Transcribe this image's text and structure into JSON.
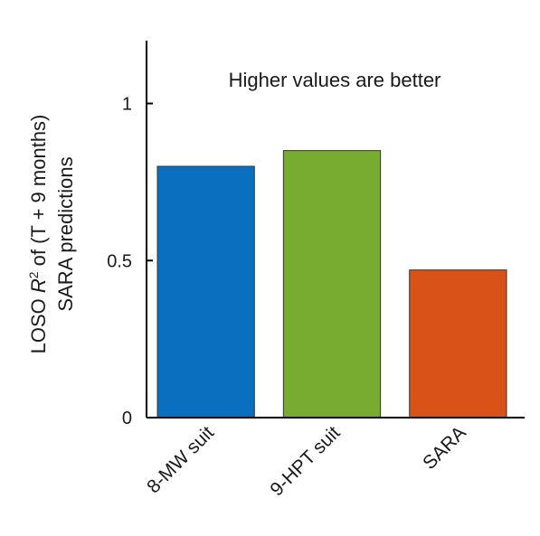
{
  "chart_data": {
    "type": "bar",
    "categories": [
      "8-MW suit",
      "9-HPT suit",
      "SARA"
    ],
    "values": [
      0.8,
      0.85,
      0.47
    ],
    "colors": [
      "#0a6fbf",
      "#77ac30",
      "#d95319"
    ],
    "ylabel_line1_prefix": "LOSO ",
    "ylabel_line1_var": "R",
    "ylabel_line1_sup": "2",
    "ylabel_line1_suffix": " of (T + 9 months)",
    "ylabel_line2": "SARA predictions",
    "annotation": "Higher values are better",
    "ylim": [
      0,
      1.2
    ],
    "yticks": [
      {
        "value": 0,
        "label": "0"
      },
      {
        "value": 0.5,
        "label": "0.5"
      },
      {
        "value": 1,
        "label": "1"
      }
    ],
    "grid": false
  }
}
